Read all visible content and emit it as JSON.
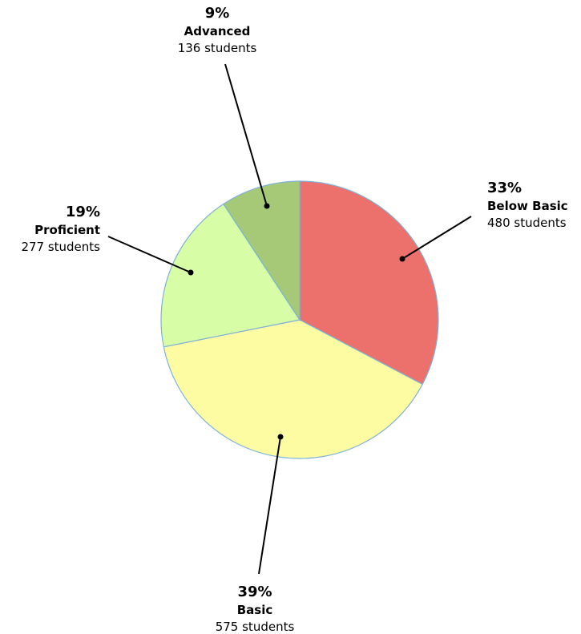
{
  "chart_data": {
    "type": "pie",
    "title": "",
    "start_angle_deg": 0,
    "direction": "clockwise",
    "slices": [
      {
        "label": "Below Basic",
        "percent_label": "33%",
        "count_label": "480 students",
        "value": 480,
        "color": "#ec706b"
      },
      {
        "label": "Basic",
        "percent_label": "39%",
        "count_label": "575 students",
        "value": 575,
        "color": "#fefca3"
      },
      {
        "label": "Proficient",
        "percent_label": "19%",
        "count_label": "277 students",
        "value": 277,
        "color": "#d7fda7"
      },
      {
        "label": "Advanced",
        "percent_label": "9%",
        "count_label": "136 students",
        "value": 136,
        "color": "#a6c978"
      }
    ]
  }
}
